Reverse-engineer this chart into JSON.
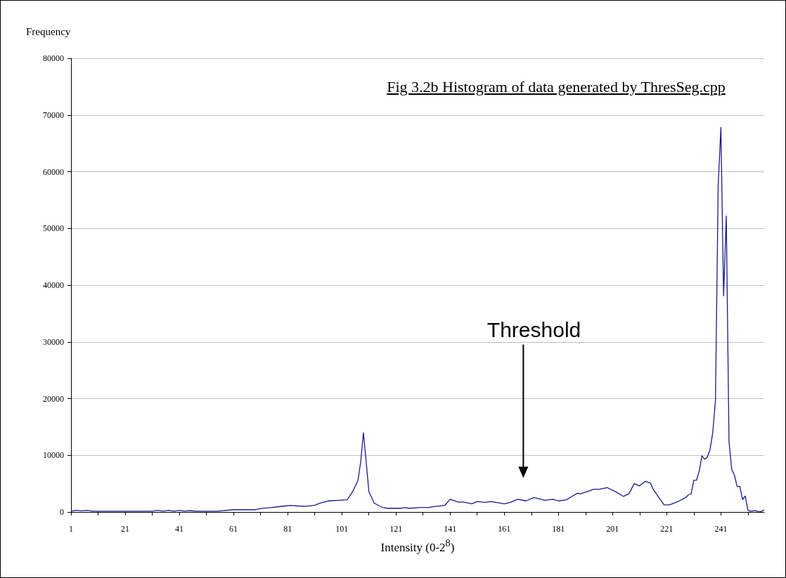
{
  "chart_data": {
    "type": "line",
    "title": "Fig 3.2b Histogram of data generated by ThresSeg.cpp",
    "xlabel": "Intensity (0-2$^{8}$)",
    "ylabel": "Frequency",
    "x": [
      1,
      3,
      5,
      7,
      9,
      15,
      25,
      31,
      33,
      35,
      37,
      39,
      41,
      43,
      45,
      47,
      55,
      61,
      69,
      71,
      75,
      77,
      80,
      82,
      85,
      88,
      91,
      93,
      96,
      100,
      103,
      105,
      107,
      108,
      109,
      110,
      111,
      113,
      116,
      118,
      123,
      124,
      126,
      130,
      133,
      135,
      139,
      141,
      144,
      146,
      149,
      151,
      154,
      156,
      158,
      161,
      163,
      166,
      169,
      172,
      174,
      176,
      179,
      181,
      184,
      186,
      188,
      189,
      192,
      194,
      196,
      199,
      202,
      205,
      207,
      209,
      211,
      213,
      215,
      216,
      220,
      222,
      225,
      228,
      229,
      230,
      231,
      232,
      233,
      234,
      235,
      236,
      237,
      238,
      239,
      240,
      241,
      242,
      243,
      244,
      245,
      246,
      247,
      248,
      249,
      250,
      251,
      252,
      254,
      255,
      256,
      257
    ],
    "values": [
      150,
      300,
      200,
      300,
      150,
      150,
      150,
      150,
      300,
      150,
      300,
      150,
      300,
      150,
      250,
      150,
      150,
      400,
      400,
      600,
      800,
      900,
      1050,
      1150,
      1050,
      1000,
      1200,
      1550,
      1950,
      2050,
      2150,
      3600,
      5600,
      8900,
      14000,
      8900,
      3600,
      1550,
      800,
      650,
      650,
      800,
      650,
      800,
      800,
      950,
      1150,
      2250,
      1750,
      1750,
      1450,
      1850,
      1700,
      1850,
      1700,
      1450,
      1650,
      2250,
      1950,
      2550,
      2300,
      2050,
      2250,
      1950,
      2150,
      2750,
      3300,
      3200,
      3650,
      4000,
      4000,
      4300,
      3600,
      2750,
      3200,
      5000,
      4600,
      5400,
      5100,
      4000,
      1250,
      1250,
      1800,
      2550,
      3000,
      3200,
      5600,
      5600,
      7200,
      9900,
      9300,
      9700,
      11000,
      14000,
      19700,
      57500,
      67800,
      38100,
      52200,
      12400,
      7500,
      6500,
      4500,
      4500,
      2200,
      2800,
      250,
      150,
      250,
      0,
      100,
      350
    ],
    "color": "#1a1a8c",
    "marker": "none",
    "line_style": "solid",
    "grid": "y",
    "xlim": [
      1,
      257
    ],
    "xticks": [
      1,
      {
        "value": 11,
        "label": null
      },
      21,
      {
        "value": 31,
        "label": null
      },
      41,
      {
        "value": 51,
        "label": null
      },
      61,
      {
        "value": 71,
        "label": null
      },
      81,
      {
        "value": 91,
        "label": null
      },
      101,
      {
        "value": 111,
        "label": null
      },
      121,
      {
        "value": 131,
        "label": null
      },
      141,
      {
        "value": 151,
        "label": null
      },
      161,
      {
        "value": 171,
        "label": null
      },
      181,
      {
        "value": 191,
        "label": null
      },
      201,
      {
        "value": 211,
        "label": null
      },
      221,
      {
        "value": 231,
        "label": null
      },
      241,
      {
        "value": 251,
        "label": null
      }
    ],
    "ylim": [
      0,
      80000
    ],
    "yticks": [
      0,
      10000,
      20000,
      30000,
      40000,
      50000,
      60000,
      70000,
      80000
    ],
    "annotations": [
      "Threshold"
    ]
  }
}
